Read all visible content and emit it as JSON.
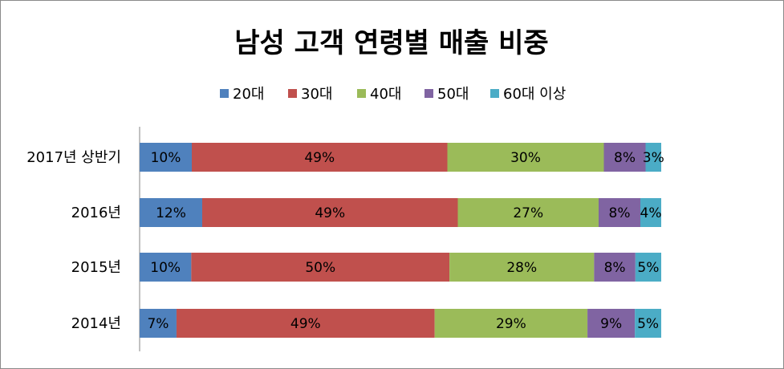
{
  "chart_data": {
    "type": "bar",
    "orientation": "horizontal",
    "stacked": "percent",
    "title": "남성 고객 연령별 매출 비중",
    "legend_position": "top",
    "grid": false,
    "categories": [
      "2017년 상반기",
      "2016년",
      "2015년",
      "2014년"
    ],
    "series": [
      {
        "name": "20대",
        "color": "#4f81bd",
        "values": [
          10,
          12,
          10,
          7
        ],
        "labels": [
          "10%",
          "12%",
          "10%",
          "7%"
        ]
      },
      {
        "name": "30대",
        "color": "#c0504d",
        "values": [
          49,
          49,
          50,
          49
        ],
        "labels": [
          "49%",
          "49%",
          "50%",
          "49%"
        ]
      },
      {
        "name": "40대",
        "color": "#9bbb59",
        "values": [
          30,
          27,
          28,
          29
        ],
        "labels": [
          "30%",
          "27%",
          "28%",
          "29%"
        ]
      },
      {
        "name": "50대",
        "color": "#8064a2",
        "values": [
          8,
          8,
          8,
          9
        ],
        "labels": [
          "8%",
          "8%",
          "8%",
          "9%"
        ]
      },
      {
        "name": "60대 이상",
        "color": "#4bacc6",
        "values": [
          3,
          4,
          5,
          5
        ],
        "labels": [
          "3%",
          "4%",
          "5%",
          "5%"
        ]
      }
    ]
  }
}
